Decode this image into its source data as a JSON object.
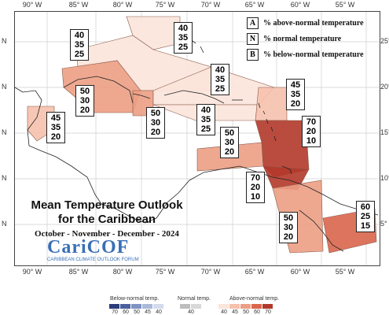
{
  "map": {
    "lon_ticks": [
      "90° W",
      "85° W",
      "80° W",
      "75° W",
      "70° W",
      "65° W",
      "60° W",
      "55° W"
    ],
    "lat_ticks_left": [
      "N",
      "N",
      "N",
      "N",
      "N",
      "N"
    ],
    "lat_ticks_right": [
      "25°",
      "20°",
      "15°",
      "10°",
      "5°"
    ]
  },
  "legend": {
    "above": {
      "key": "A",
      "label": "% above-normal temperature"
    },
    "normal": {
      "key": "N",
      "label": "% normal temperature"
    },
    "below": {
      "key": "B",
      "label": "% below-normal temperature"
    }
  },
  "regions": [
    {
      "id": "bahamas-north",
      "values": [
        "40",
        "35",
        "25"
      ],
      "color": "#fbe4da"
    },
    {
      "id": "bahamas-west",
      "values": [
        "40",
        "35",
        "25"
      ],
      "color": "#fbe4da"
    },
    {
      "id": "cuba-cayman",
      "values": [
        "50",
        "30",
        "20"
      ],
      "color": "#ec9f84"
    },
    {
      "id": "belize",
      "values": [
        "45",
        "35",
        "20"
      ],
      "color": "#f6c1ad"
    },
    {
      "id": "jamaica",
      "values": [
        "50",
        "30",
        "20"
      ],
      "color": "#ec9f84"
    },
    {
      "id": "hispaniola-north",
      "values": [
        "40",
        "35",
        "25"
      ],
      "color": "#fbe4da"
    },
    {
      "id": "hispaniola-south",
      "values": [
        "40",
        "35",
        "25"
      ],
      "color": "#fbe4da"
    },
    {
      "id": "leeward",
      "values": [
        "45",
        "35",
        "20"
      ],
      "color": "#f6c1ad"
    },
    {
      "id": "aruba-curacao",
      "values": [
        "50",
        "30",
        "20"
      ],
      "color": "#ec9f84"
    },
    {
      "id": "windward",
      "values": [
        "70",
        "20",
        "10"
      ],
      "color": "#b2392a"
    },
    {
      "id": "trinidad",
      "values": [
        "70",
        "20",
        "10"
      ],
      "color": "#b2392a"
    },
    {
      "id": "guyana",
      "values": [
        "50",
        "30",
        "20"
      ],
      "color": "#ec9f84"
    },
    {
      "id": "suriname",
      "values": [
        "60",
        "25",
        "15"
      ],
      "color": "#d9664d"
    }
  ],
  "title": {
    "line1": "Mean Temperature Outlook",
    "line2": "for the Caribbean",
    "period": "October - November - December - 2024"
  },
  "logo": {
    "text": "CariCOF",
    "subtitle": "CARIBBEAN CLIMATE OUTLOOK FORUM"
  },
  "colorbar": {
    "below_title": "Below-normal temp.",
    "normal_title": "Normal temp.",
    "above_title": "Above-normal temp.",
    "below_ticks": [
      "70",
      "60",
      "50",
      "45",
      "40"
    ],
    "normal_ticks": [
      "40"
    ],
    "above_ticks": [
      "40",
      "45",
      "50",
      "60",
      "70"
    ],
    "below_colors": [
      "#2b3c7a",
      "#4a5f9e",
      "#7f92c2",
      "#aab8d9",
      "#d3dbec"
    ],
    "normal_colors": [
      "#bdbdbd",
      "#d8d8d8"
    ],
    "above_colors": [
      "#fbe4da",
      "#f6c1ad",
      "#ec9f84",
      "#d9664d",
      "#b2392a"
    ]
  }
}
